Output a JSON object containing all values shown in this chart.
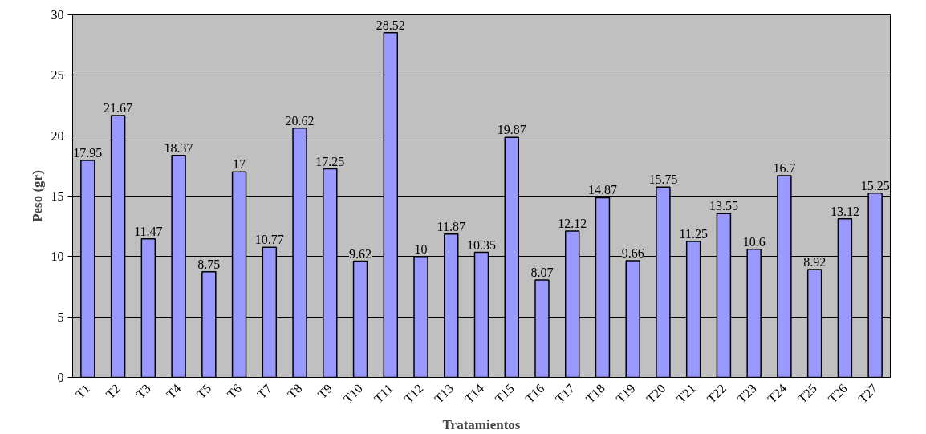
{
  "chart_data": {
    "type": "bar",
    "xlabel": "Tratamientos",
    "ylabel": "Peso (gr)",
    "categories": [
      "T1",
      "T2",
      "T3",
      "T4",
      "T5",
      "T6",
      "T7",
      "T8",
      "T9",
      "T10",
      "T11",
      "T12",
      "T13",
      "T14",
      "T15",
      "T16",
      "T17",
      "T18",
      "T19",
      "T20",
      "T21",
      "T22",
      "T23",
      "T24",
      "T25",
      "T26",
      "T27"
    ],
    "values": [
      17.95,
      21.67,
      11.47,
      18.37,
      8.75,
      17,
      10.77,
      20.62,
      17.25,
      9.62,
      28.52,
      10,
      11.87,
      10.35,
      19.87,
      8.07,
      12.12,
      14.87,
      9.66,
      15.75,
      11.25,
      13.55,
      10.6,
      16.7,
      8.92,
      13.12,
      15.25
    ],
    "color": "#9999ff",
    "ylim": [
      0,
      30
    ],
    "yticks": [
      0,
      5,
      10,
      15,
      20,
      25,
      30
    ],
    "grid": "y",
    "data_labels": true
  }
}
